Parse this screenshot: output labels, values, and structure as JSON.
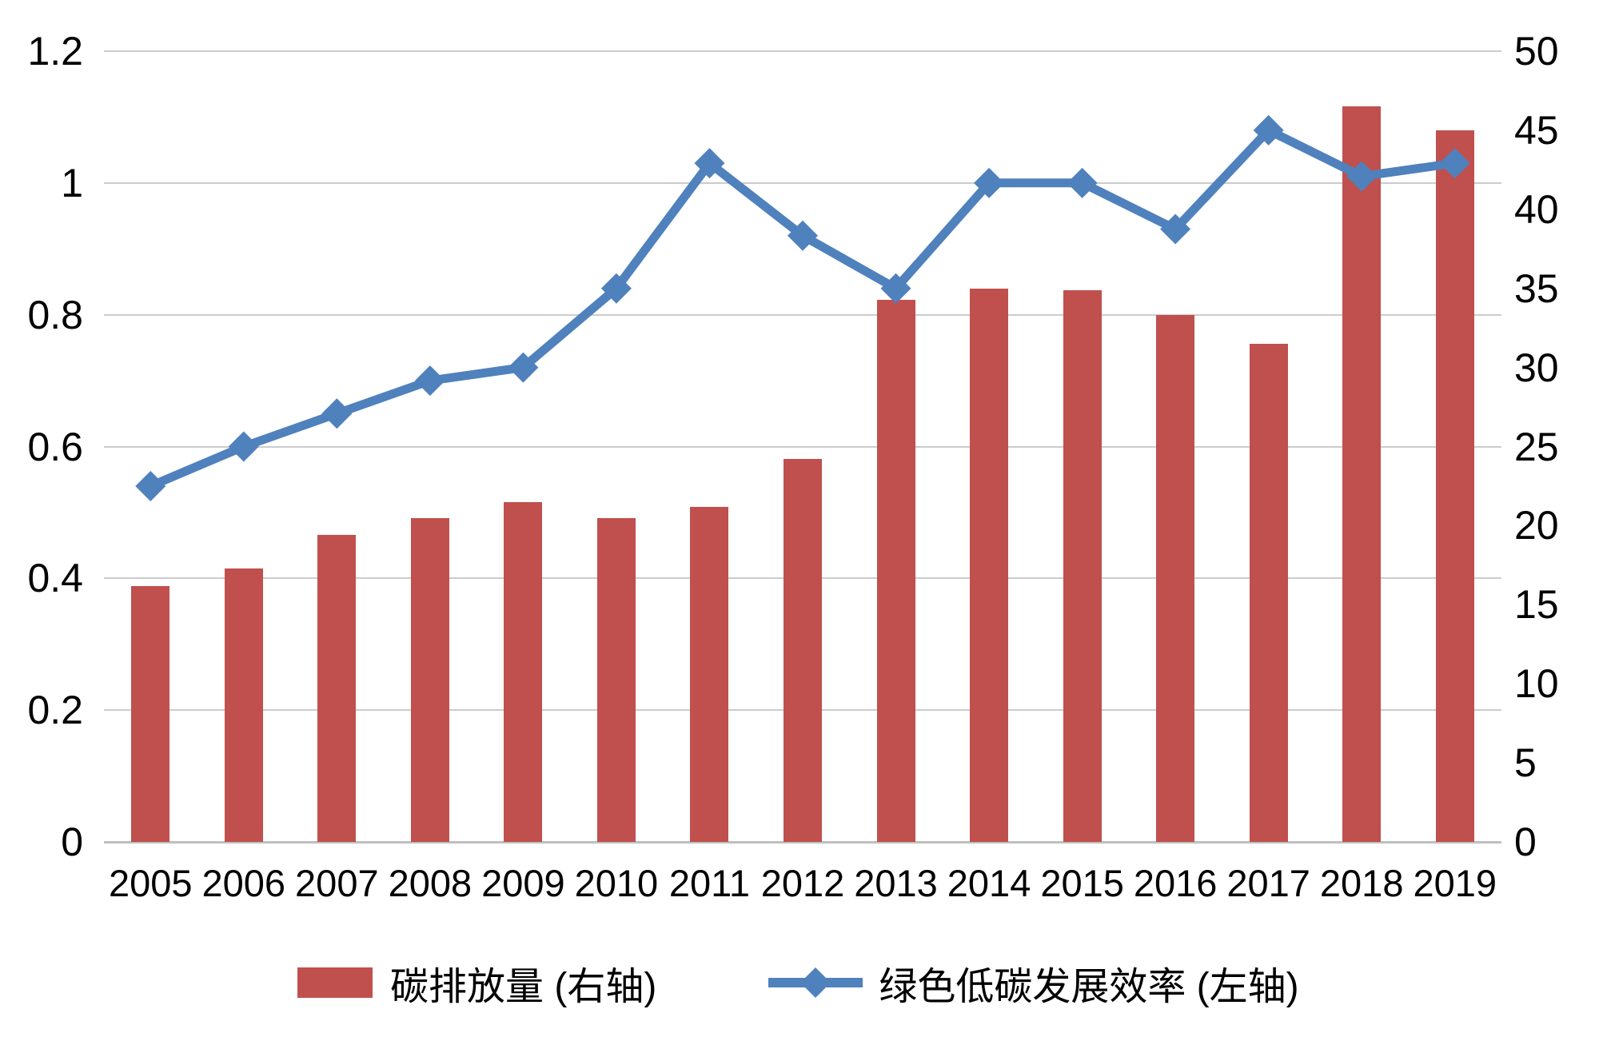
{
  "chart_data": {
    "type": "combo-bar-line",
    "categories": [
      "2005",
      "2006",
      "2007",
      "2008",
      "2009",
      "2010",
      "2011",
      "2012",
      "2013",
      "2014",
      "2015",
      "2016",
      "2017",
      "2018",
      "2019"
    ],
    "series": [
      {
        "name": "碳排放量 (右轴)",
        "type": "bar",
        "axis": "right",
        "color": "#C0504D",
        "values": [
          16.2,
          17.3,
          19.4,
          20.5,
          21.5,
          20.5,
          21.2,
          24.2,
          34.3,
          35.0,
          34.9,
          33.3,
          31.5,
          46.5,
          45.0
        ]
      },
      {
        "name": "绿色低碳发展效率 (左轴)",
        "type": "line",
        "axis": "left",
        "color": "#4F81BD",
        "marker": "diamond",
        "values": [
          0.54,
          0.6,
          0.65,
          0.7,
          0.72,
          0.84,
          1.03,
          0.92,
          0.84,
          1.0,
          1.0,
          0.93,
          1.08,
          1.01,
          1.03
        ]
      }
    ],
    "left_axis": {
      "min": 0,
      "max": 1.2,
      "step": 0.2,
      "ticks": [
        "1.2",
        "1",
        "0.8",
        "0.6",
        "0.4",
        "0.2",
        "0"
      ]
    },
    "right_axis": {
      "min": 0,
      "max": 50,
      "step": 5,
      "ticks": [
        "50",
        "45",
        "40",
        "35",
        "30",
        "25",
        "20",
        "15",
        "10",
        "5",
        "0"
      ]
    },
    "grid": true,
    "legend_position": "bottom",
    "title": ""
  },
  "colors": {
    "bar": "#C0504D",
    "line": "#4F81BD",
    "gridline": "#CCCCCC",
    "axis_line": "#BFBFBF",
    "text": "#000000",
    "background": "#FFFFFF"
  }
}
